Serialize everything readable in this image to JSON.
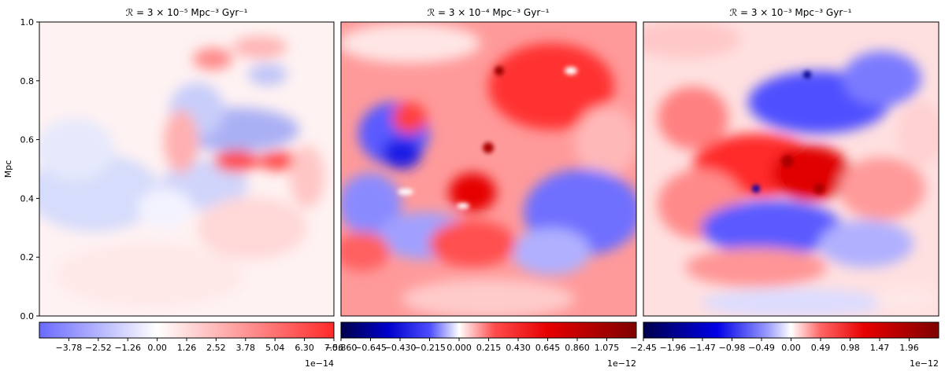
{
  "figure": {
    "ylabel": "Mpc",
    "ylim": [
      0.0,
      1.0
    ],
    "yticks": [
      "0.0",
      "0.2",
      "0.4",
      "0.6",
      "0.8",
      "1.0"
    ]
  },
  "chart_data": [
    {
      "type": "heatmap",
      "title": "ℛ = 3 × 10⁻⁵ Mpc⁻³ Gyr⁻¹",
      "ylabel": "Mpc",
      "colormap": "bwr",
      "colorbar_ticks": [
        "−3.78",
        "−2.52",
        "−1.26",
        "0.00",
        "1.26",
        "2.52",
        "3.78",
        "5.04",
        "6.30",
        "7.56"
      ],
      "colorbar_range": [
        -5.04,
        7.56
      ],
      "colorbar_exponent": "1e−14"
    },
    {
      "type": "heatmap",
      "title": "ℛ = 3 × 10⁻⁴ Mpc⁻³ Gyr⁻¹",
      "colormap": "seismic",
      "colorbar_ticks": [
        "−0.860",
        "−0.645",
        "−0.430",
        "−0.215",
        "0.000",
        "0.215",
        "0.430",
        "0.645",
        "0.860",
        "1.075"
      ],
      "colorbar_range": [
        -0.86,
        1.29
      ],
      "colorbar_exponent": "1e−12"
    },
    {
      "type": "heatmap",
      "title": "ℛ = 3 × 10⁻³ Mpc⁻³ Gyr⁻¹",
      "colormap": "seismic",
      "colorbar_ticks": [
        "−2.45",
        "−1.96",
        "−1.47",
        "−0.98",
        "−0.49",
        "0.00",
        "0.49",
        "0.98",
        "1.47",
        "1.96"
      ],
      "colorbar_range": [
        -2.45,
        2.45
      ],
      "colorbar_exponent": "1e−12"
    }
  ]
}
